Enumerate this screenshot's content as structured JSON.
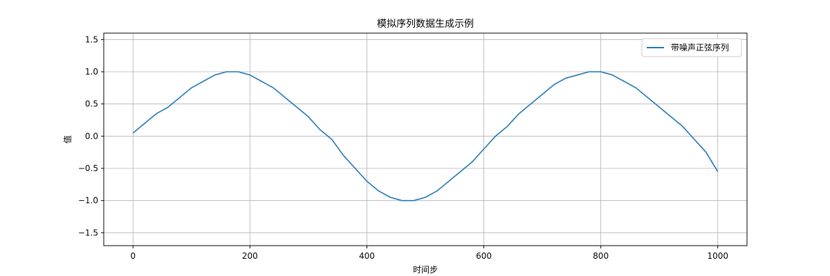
{
  "chart_data": {
    "type": "line",
    "title": "模拟序列数据生成示例",
    "xlabel": "时间步",
    "ylabel": "值",
    "xlim": [
      -50,
      1050
    ],
    "ylim": [
      -1.7,
      1.6
    ],
    "xticks": [
      0,
      200,
      400,
      600,
      800,
      1000
    ],
    "yticks": [
      -1.5,
      -1.0,
      -0.5,
      0.0,
      0.5,
      1.0,
      1.5
    ],
    "xtick_labels": [
      "0",
      "200",
      "400",
      "600",
      "800",
      "1000"
    ],
    "ytick_labels": [
      "−1.5",
      "−1.0",
      "−0.5",
      "0.0",
      "0.5",
      "1.0",
      "1.5"
    ],
    "grid": true,
    "legend_position": "top-right",
    "series": [
      {
        "name": "带噪声正弦序列",
        "color": "#1f77b4",
        "x": [
          0,
          20,
          40,
          60,
          80,
          100,
          120,
          140,
          160,
          180,
          200,
          220,
          240,
          260,
          280,
          300,
          320,
          340,
          360,
          380,
          400,
          420,
          440,
          460,
          480,
          500,
          520,
          540,
          560,
          580,
          600,
          620,
          640,
          660,
          680,
          700,
          720,
          740,
          760,
          780,
          800,
          820,
          840,
          860,
          880,
          900,
          920,
          940,
          960,
          980,
          1000
        ],
        "values": [
          0.05,
          0.2,
          0.35,
          0.45,
          0.6,
          0.75,
          0.85,
          0.95,
          1.0,
          1.0,
          0.95,
          0.85,
          0.75,
          0.6,
          0.45,
          0.3,
          0.1,
          -0.05,
          -0.3,
          -0.5,
          -0.7,
          -0.85,
          -0.95,
          -1.0,
          -1.0,
          -0.95,
          -0.85,
          -0.7,
          -0.55,
          -0.4,
          -0.2,
          0.0,
          0.15,
          0.35,
          0.5,
          0.65,
          0.8,
          0.9,
          0.95,
          1.0,
          1.0,
          0.95,
          0.85,
          0.75,
          0.6,
          0.45,
          0.3,
          0.15,
          -0.05,
          -0.25,
          -0.55
        ]
      }
    ]
  }
}
